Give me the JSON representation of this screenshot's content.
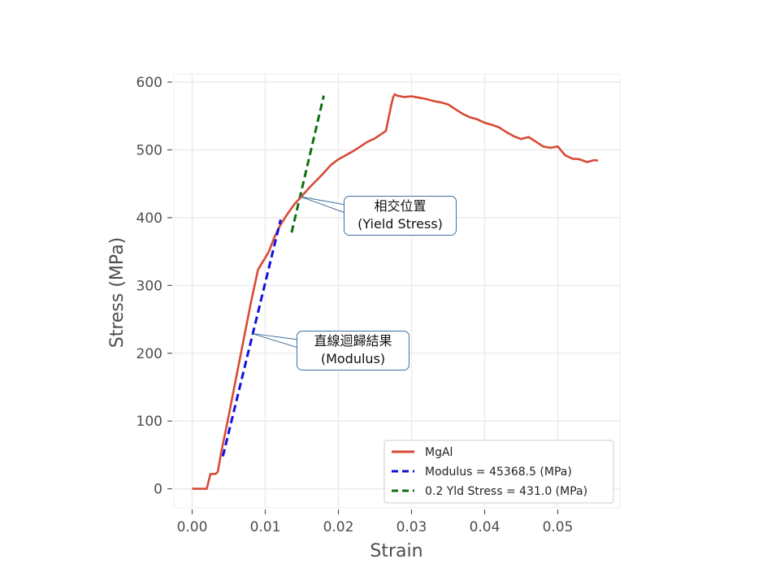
{
  "chart_data": {
    "type": "line",
    "xlabel": "Strain",
    "ylabel": "Stress (MPa)",
    "xlim": [
      -0.0025,
      0.0585
    ],
    "ylim": [
      -28,
      612
    ],
    "xticks": [
      0.0,
      0.01,
      0.02,
      0.03,
      0.04,
      0.05
    ],
    "xtick_labels": [
      "0.00",
      "0.01",
      "0.02",
      "0.03",
      "0.04",
      "0.05"
    ],
    "yticks": [
      0,
      100,
      200,
      300,
      400,
      500,
      600
    ],
    "ytick_labels": [
      "0",
      "100",
      "200",
      "300",
      "400",
      "500",
      "600"
    ],
    "grid": true,
    "legend_position": "lower-right",
    "series": [
      {
        "name": "MgAl",
        "color": "#d84a36",
        "style": "solid",
        "x": [
          0.0,
          0.002,
          0.0025,
          0.0032,
          0.0035,
          0.004,
          0.005,
          0.006,
          0.007,
          0.008,
          0.009,
          0.0105,
          0.0112,
          0.012,
          0.013,
          0.014,
          0.015,
          0.016,
          0.017,
          0.018,
          0.019,
          0.02,
          0.021,
          0.022,
          0.023,
          0.024,
          0.025,
          0.0265,
          0.0272,
          0.0275,
          0.0277,
          0.028,
          0.029,
          0.03,
          0.031,
          0.032,
          0.033,
          0.034,
          0.035,
          0.036,
          0.037,
          0.038,
          0.039,
          0.04,
          0.041,
          0.042,
          0.043,
          0.044,
          0.045,
          0.046,
          0.047,
          0.048,
          0.049,
          0.05,
          0.051,
          0.052,
          0.053,
          0.054,
          0.055,
          0.0555
        ],
        "y": [
          0,
          0,
          22,
          22,
          25,
          55,
          108,
          163,
          218,
          273,
          323,
          350,
          370,
          388,
          405,
          420,
          432,
          444,
          455,
          466,
          478,
          486,
          492,
          498,
          505,
          512,
          517,
          528,
          565,
          578,
          582,
          580,
          578,
          579,
          577,
          575,
          572,
          570,
          567,
          560,
          553,
          548,
          545,
          540,
          537,
          533,
          526,
          520,
          516,
          519,
          512,
          505,
          503,
          505,
          492,
          487,
          486,
          482,
          485,
          484
        ]
      },
      {
        "name": "Modulus = 45368.5 (MPa)",
        "color": "#1010e0",
        "style": "dashed",
        "x": [
          0.0042,
          0.0121
        ],
        "y": [
          48,
          397
        ]
      },
      {
        "name": "0.2 Yld Stress = 431.0 (MPa)",
        "color": "#107010",
        "style": "dashed",
        "x": [
          0.0136,
          0.018
        ],
        "y": [
          378,
          580
        ]
      }
    ],
    "annotations": [
      {
        "text_line1": "相交位置",
        "text_line2": "(Yield Stress)",
        "target": [
          0.0148,
          431.0
        ]
      },
      {
        "text_line1": "直線迴歸結果",
        "text_line2": "(Modulus)",
        "target": [
          0.0082,
          229
        ]
      }
    ]
  }
}
